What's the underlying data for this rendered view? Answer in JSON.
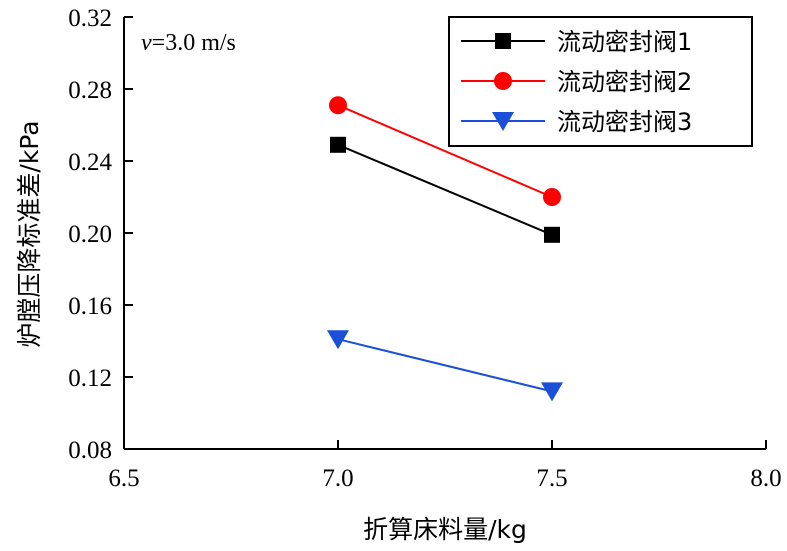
{
  "chart_data": {
    "type": "line",
    "xlabel": "折算床料量/kg",
    "ylabel": "炉膛压降标准差/kPa",
    "annotation": {
      "var": "v",
      "text": "=3.0 m/s"
    },
    "xlim": [
      6.5,
      8.0
    ],
    "ylim": [
      0.08,
      0.32
    ],
    "xticks": [
      "6.5",
      "7.0",
      "7.5",
      "8.0"
    ],
    "yticks": [
      "0.08",
      "0.12",
      "0.16",
      "0.20",
      "0.24",
      "0.28",
      "0.32"
    ],
    "grid": false,
    "legend_position": "top-right",
    "series": [
      {
        "name": "流动密封阀1",
        "color": "#000000",
        "marker": "square",
        "x": [
          7.0,
          7.5
        ],
        "y": [
          0.249,
          0.199
        ]
      },
      {
        "name": "流动密封阀2",
        "color": "#ff0000",
        "marker": "circle",
        "x": [
          7.0,
          7.5
        ],
        "y": [
          0.271,
          0.22
        ]
      },
      {
        "name": "流动密封阀3",
        "color": "#1a4fd8",
        "marker": "triangle-down",
        "x": [
          7.0,
          7.5
        ],
        "y": [
          0.141,
          0.112
        ]
      }
    ]
  }
}
